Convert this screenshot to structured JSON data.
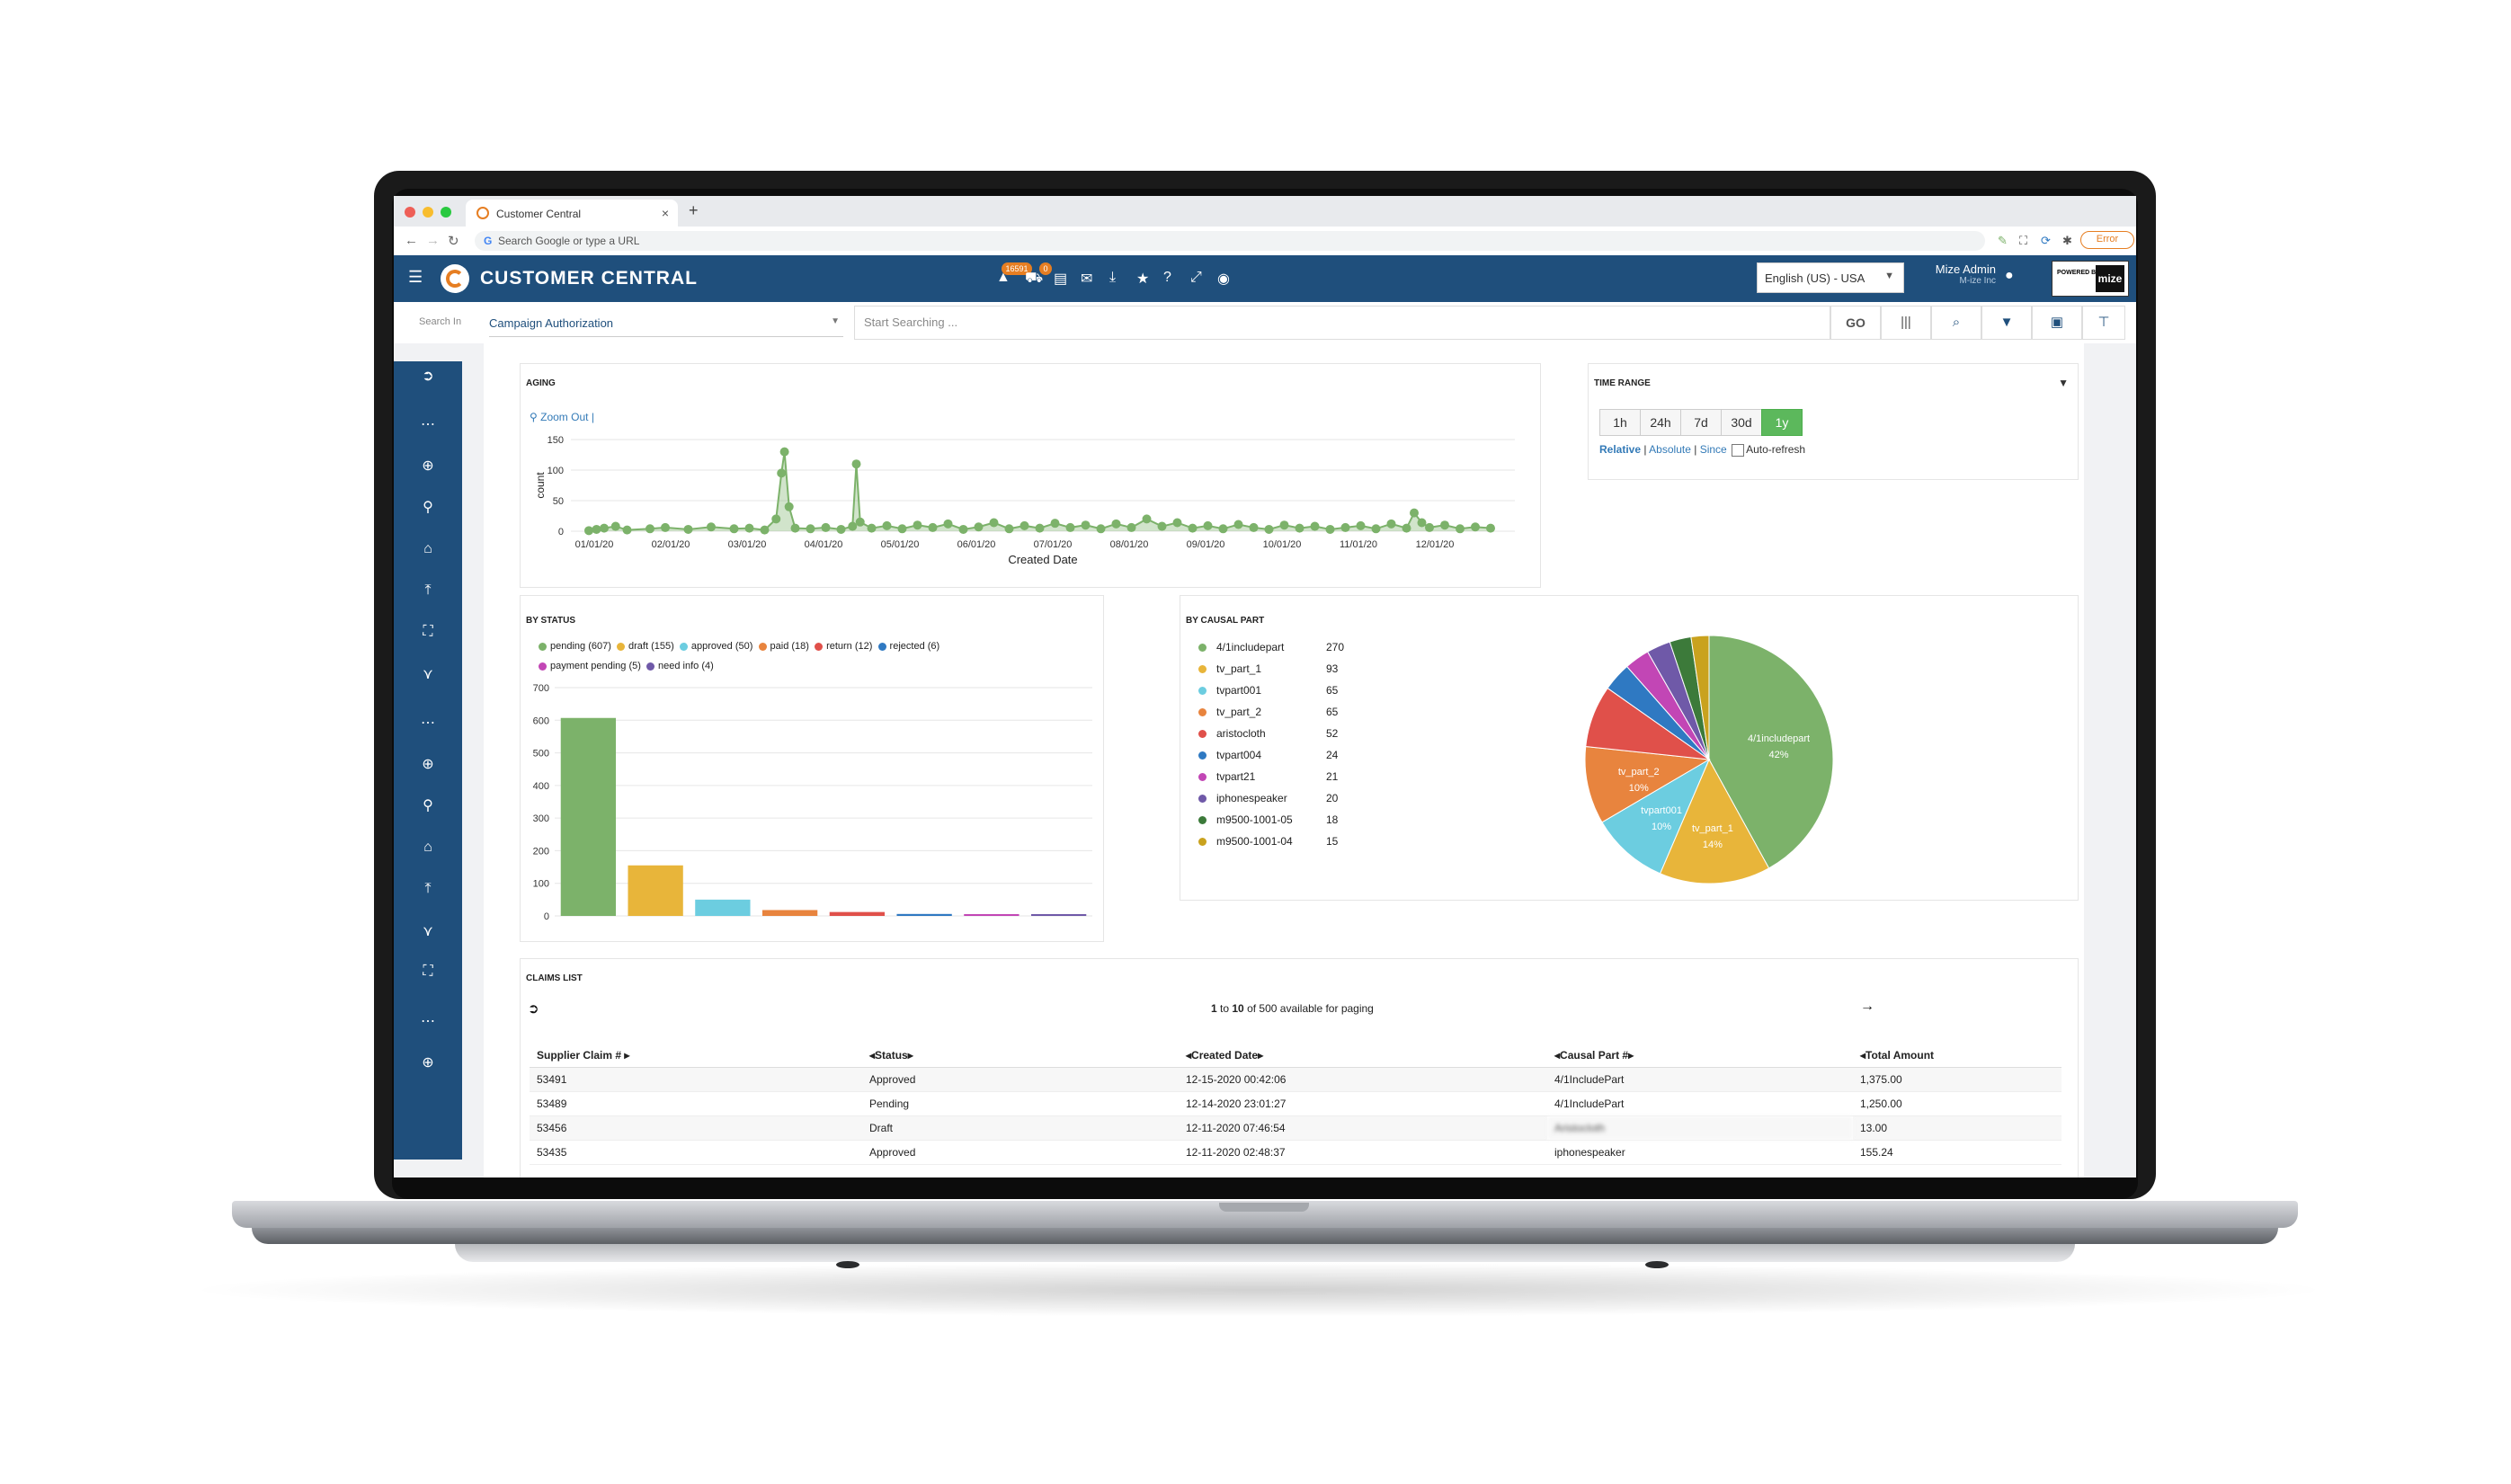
{
  "browser": {
    "tab_title": "Customer Central",
    "new_tab": "+",
    "address_placeholder": "Search Google or type a URL",
    "error_label": "Error"
  },
  "header": {
    "brand": "CUSTOMER CENTRAL",
    "notification_count": "16591",
    "cart_count": "0",
    "language": "English (US) - USA",
    "user_name": "Mize Admin",
    "user_org": "M-ize Inc",
    "powered_by": "POWERED BY",
    "powered_logo": "mize"
  },
  "search": {
    "label": "Search In",
    "scope": "Campaign Authorization",
    "placeholder": "Start Searching ...",
    "go": "GO"
  },
  "aging": {
    "title": "AGING",
    "zoom_out": "Zoom Out",
    "chart_data": {
      "type": "line",
      "xlabel": "Created Date",
      "ylabel": "count",
      "y_ticks": [
        "150",
        "100",
        "50",
        "0"
      ],
      "x_ticks": [
        "01/01/20",
        "02/01/20",
        "03/01/20",
        "04/01/20",
        "05/01/20",
        "06/01/20",
        "07/01/20",
        "08/01/20",
        "09/01/20",
        "10/01/20",
        "11/01/20",
        "12/01/20"
      ],
      "ylim": [
        0,
        150
      ],
      "series_color": "#7cb26a",
      "points": [
        [
          0,
          1
        ],
        [
          0.1,
          3
        ],
        [
          0.2,
          5
        ],
        [
          0.35,
          8
        ],
        [
          0.5,
          2
        ],
        [
          0.8,
          4
        ],
        [
          1.0,
          6
        ],
        [
          1.3,
          3
        ],
        [
          1.6,
          7
        ],
        [
          1.9,
          4
        ],
        [
          2.1,
          5
        ],
        [
          2.3,
          2
        ],
        [
          2.45,
          20
        ],
        [
          2.52,
          95
        ],
        [
          2.56,
          130
        ],
        [
          2.62,
          40
        ],
        [
          2.7,
          5
        ],
        [
          2.9,
          4
        ],
        [
          3.1,
          6
        ],
        [
          3.3,
          3
        ],
        [
          3.45,
          8
        ],
        [
          3.5,
          110
        ],
        [
          3.55,
          15
        ],
        [
          3.7,
          5
        ],
        [
          3.9,
          9
        ],
        [
          4.1,
          4
        ],
        [
          4.3,
          10
        ],
        [
          4.5,
          6
        ],
        [
          4.7,
          12
        ],
        [
          4.9,
          3
        ],
        [
          5.1,
          7
        ],
        [
          5.3,
          14
        ],
        [
          5.5,
          4
        ],
        [
          5.7,
          9
        ],
        [
          5.9,
          5
        ],
        [
          6.1,
          13
        ],
        [
          6.3,
          6
        ],
        [
          6.5,
          10
        ],
        [
          6.7,
          4
        ],
        [
          6.9,
          12
        ],
        [
          7.1,
          6
        ],
        [
          7.3,
          20
        ],
        [
          7.5,
          8
        ],
        [
          7.7,
          14
        ],
        [
          7.9,
          5
        ],
        [
          8.1,
          9
        ],
        [
          8.3,
          4
        ],
        [
          8.5,
          11
        ],
        [
          8.7,
          6
        ],
        [
          8.9,
          3
        ],
        [
          9.1,
          10
        ],
        [
          9.3,
          5
        ],
        [
          9.5,
          8
        ],
        [
          9.7,
          3
        ],
        [
          9.9,
          6
        ],
        [
          10.1,
          9
        ],
        [
          10.3,
          4
        ],
        [
          10.5,
          12
        ],
        [
          10.7,
          5
        ],
        [
          10.8,
          30
        ],
        [
          10.9,
          14
        ],
        [
          11.0,
          6
        ],
        [
          11.2,
          10
        ],
        [
          11.4,
          4
        ],
        [
          11.6,
          7
        ],
        [
          11.8,
          5
        ]
      ]
    }
  },
  "time_range": {
    "title": "TIME RANGE",
    "buttons": [
      "1h",
      "24h",
      "7d",
      "30d",
      "1y"
    ],
    "active": "1y",
    "relative": "Relative",
    "absolute": "Absolute",
    "since": "Since",
    "auto_refresh": "Auto-refresh",
    "sep": "|"
  },
  "by_status": {
    "title": "BY STATUS",
    "chart_data": {
      "type": "bar",
      "categories": [
        "pending (607)",
        "draft (155)",
        "approved (50)",
        "paid (18)",
        "return (12)",
        "rejected (6)",
        "payment pending (5)",
        "need info (4)"
      ],
      "values": [
        607,
        155,
        50,
        18,
        12,
        6,
        5,
        4
      ],
      "colors": [
        "#7cb26a",
        "#e8b53a",
        "#6ccde0",
        "#e8843e",
        "#e0504a",
        "#2f79c2",
        "#c246b5",
        "#6f59a8"
      ],
      "y_ticks": [
        "700",
        "600",
        "500",
        "400",
        "300",
        "200",
        "100",
        "0"
      ],
      "ylim": [
        0,
        700
      ]
    }
  },
  "by_causal_part": {
    "title": "BY CAUSAL PART",
    "chart_data": {
      "type": "pie",
      "labels": [
        "4/1includepart",
        "tv_part_1",
        "tvpart001",
        "tv_part_2",
        "aristocloth",
        "tvpart004",
        "tvpart21",
        "iphonespeaker",
        "m9500-1001-05",
        "m9500-1001-04"
      ],
      "values": [
        270,
        93,
        65,
        65,
        52,
        24,
        21,
        20,
        18,
        15
      ],
      "colors": [
        "#7cb26a",
        "#e8b53a",
        "#6ccde0",
        "#e8843e",
        "#e0504a",
        "#2f79c2",
        "#c246b5",
        "#6f59a8",
        "#3c7a3a",
        "#c9a21e"
      ],
      "slice_labels": [
        {
          "name": "4/1includepart",
          "pct": "42%"
        },
        {
          "name": "tv_part_1",
          "pct": "14%"
        },
        {
          "name": "tvpart001",
          "pct": "10%"
        },
        {
          "name": "tv_part_2",
          "pct": "10%"
        }
      ]
    }
  },
  "claims": {
    "title": "CLAIMS LIST",
    "paging_from": "1",
    "paging_to": "10",
    "paging_text": "of 500 available for paging",
    "columns": [
      "Supplier Claim #",
      "Status",
      "Created Date",
      "Causal Part #",
      "Total Amount"
    ],
    "rows": [
      [
        "53491",
        "Approved",
        "12-15-2020 00:42:06",
        "4/1IncludePart",
        "1,375.00"
      ],
      [
        "53489",
        "Pending",
        "12-14-2020 23:01:27",
        "4/1IncludePart",
        "1,250.00"
      ],
      [
        "53456",
        "Draft",
        "12-11-2020 07:46:54",
        "Aristocloth",
        "13.00"
      ],
      [
        "53435",
        "Approved",
        "12-11-2020 02:48:37",
        "iphonespeaker",
        "155.24"
      ]
    ]
  }
}
